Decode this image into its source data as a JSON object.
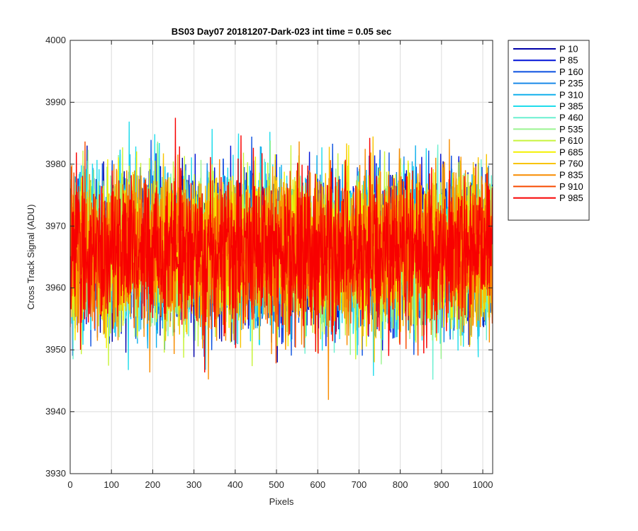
{
  "chart_data": {
    "type": "line",
    "title": "BS03 Day07 20181207-Dark-023 int time = 0.05 sec",
    "xlabel": "Pixels",
    "ylabel": "Cross Track Signal (ADU)",
    "xlim": [
      0,
      1024
    ],
    "ylim": [
      3930,
      4000
    ],
    "x_ticks": [
      0,
      100,
      200,
      300,
      400,
      500,
      600,
      700,
      800,
      900,
      1000
    ],
    "y_ticks": [
      3930,
      3940,
      3950,
      3960,
      3970,
      3980,
      3990,
      4000
    ],
    "grid": true,
    "legend_position": "outside-top-right",
    "n_points": 1024,
    "series_mean": 3966,
    "series": [
      {
        "name": "P 10",
        "color": "#0000a8"
      },
      {
        "name": "P 85",
        "color": "#0012d8"
      },
      {
        "name": "P 160",
        "color": "#0a50e0"
      },
      {
        "name": "P 235",
        "color": "#1a8ae8"
      },
      {
        "name": "P 310",
        "color": "#12b0ec"
      },
      {
        "name": "P 385",
        "color": "#20dcec"
      },
      {
        "name": "P 460",
        "color": "#6af0d0"
      },
      {
        "name": "P 535",
        "color": "#9af490"
      },
      {
        "name": "P 610",
        "color": "#c8f43c"
      },
      {
        "name": "P 685",
        "color": "#f4f000"
      },
      {
        "name": "P 760",
        "color": "#f8c400"
      },
      {
        "name": "P 835",
        "color": "#f88c00"
      },
      {
        "name": "P 910",
        "color": "#f84a00"
      },
      {
        "name": "P 985",
        "color": "#f80000"
      }
    ]
  }
}
